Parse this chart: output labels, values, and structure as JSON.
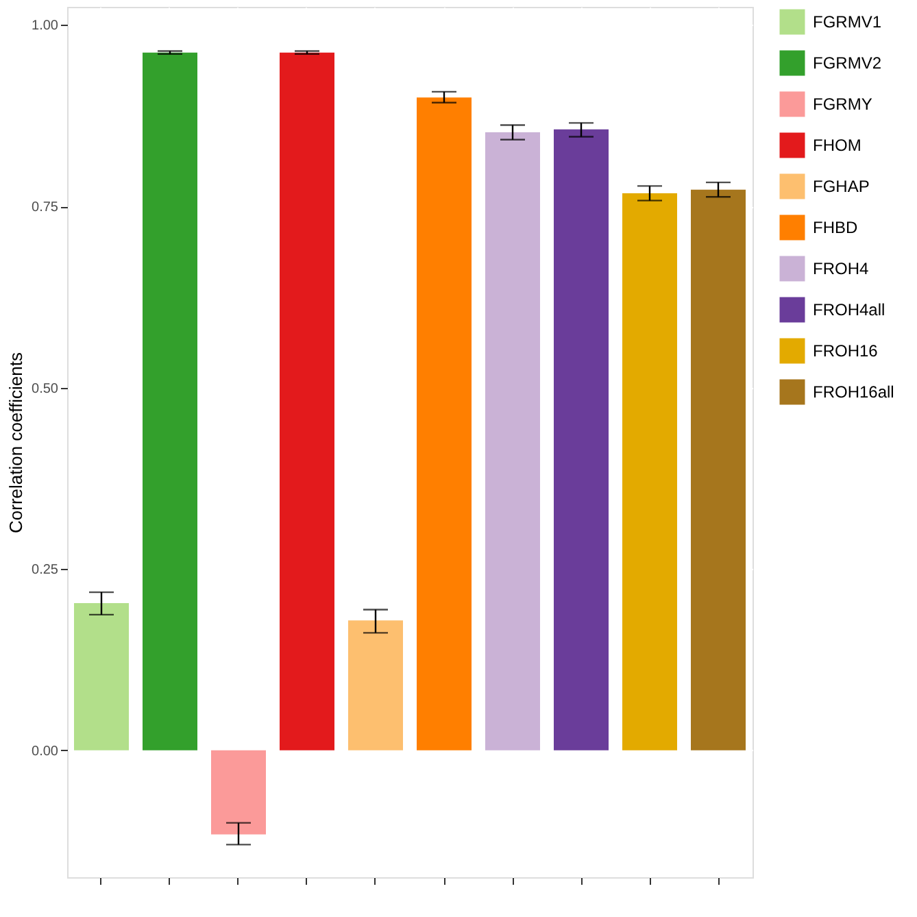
{
  "chart_data": {
    "type": "bar",
    "ylabel": "Correlation coefficients",
    "categories": [
      null,
      null,
      null,
      null,
      null,
      null,
      null,
      null,
      null,
      null
    ],
    "series": [
      {
        "name": "FGRMV1",
        "color": "#b2df8a",
        "values": [
          0.203,
          null,
          null,
          null,
          null,
          null,
          null,
          null,
          null,
          null
        ],
        "errors": [
          [
            0.187,
            0.218
          ],
          null,
          null,
          null,
          null,
          null,
          null,
          null,
          null,
          null
        ]
      },
      {
        "name": "FGRMV2",
        "color": "#33a02c",
        "values": [
          null,
          0.962,
          null,
          null,
          null,
          null,
          null,
          null,
          null,
          null
        ],
        "errors": [
          null,
          [
            0.96,
            0.964
          ],
          null,
          null,
          null,
          null,
          null,
          null,
          null,
          null
        ]
      },
      {
        "name": "FGRMY",
        "color": "#fb9a99",
        "values": [
          null,
          null,
          -0.116,
          null,
          null,
          null,
          null,
          null,
          null,
          null
        ],
        "errors": [
          null,
          null,
          [
            -0.13,
            -0.1
          ],
          null,
          null,
          null,
          null,
          null,
          null,
          null
        ]
      },
      {
        "name": "FHOM",
        "color": "#e31a1c",
        "values": [
          null,
          null,
          null,
          0.962,
          null,
          null,
          null,
          null,
          null,
          null
        ],
        "errors": [
          null,
          null,
          null,
          [
            0.96,
            0.964
          ],
          null,
          null,
          null,
          null,
          null,
          null
        ]
      },
      {
        "name": "FGHAP",
        "color": "#fdbf6f",
        "values": [
          null,
          null,
          null,
          null,
          0.179,
          null,
          null,
          null,
          null,
          null
        ],
        "errors": [
          null,
          null,
          null,
          null,
          [
            0.162,
            0.194
          ],
          null,
          null,
          null,
          null,
          null
        ]
      },
      {
        "name": "FHBD",
        "color": "#ff7f00",
        "values": [
          null,
          null,
          null,
          null,
          null,
          0.9,
          null,
          null,
          null,
          null
        ],
        "errors": [
          null,
          null,
          null,
          null,
          null,
          [
            0.893,
            0.908
          ],
          null,
          null,
          null,
          null
        ]
      },
      {
        "name": "FROH4",
        "color": "#cab2d6",
        "values": [
          null,
          null,
          null,
          null,
          null,
          null,
          0.852,
          null,
          null,
          null
        ],
        "errors": [
          null,
          null,
          null,
          null,
          null,
          null,
          [
            0.842,
            0.862
          ],
          null,
          null,
          null
        ]
      },
      {
        "name": "FROH4all",
        "color": "#6a3d9a",
        "values": [
          null,
          null,
          null,
          null,
          null,
          null,
          null,
          0.856,
          null,
          null
        ],
        "errors": [
          null,
          null,
          null,
          null,
          null,
          null,
          null,
          [
            0.846,
            0.865
          ],
          null,
          null
        ]
      },
      {
        "name": "FROH16",
        "color": "#e3aa00",
        "values": [
          null,
          null,
          null,
          null,
          null,
          null,
          null,
          null,
          0.768,
          null
        ],
        "errors": [
          null,
          null,
          null,
          null,
          null,
          null,
          null,
          null,
          [
            0.758,
            0.778
          ],
          null
        ]
      },
      {
        "name": "FROH16all",
        "color": "#a6761d",
        "values": [
          null,
          null,
          null,
          null,
          null,
          null,
          null,
          null,
          null,
          0.773
        ],
        "errors": [
          null,
          null,
          null,
          null,
          null,
          null,
          null,
          null,
          null,
          [
            0.763,
            0.783
          ]
        ]
      }
    ],
    "ylim": [
      -0.175,
      1.025
    ],
    "yticks": [
      {
        "value": 0,
        "label": "0.00"
      },
      {
        "value": 0.25,
        "label": "0.25"
      },
      {
        "value": 0.5,
        "label": "0.50"
      },
      {
        "value": 0.75,
        "label": "0.75"
      },
      {
        "value": 1,
        "label": "1.00"
      }
    ],
    "tick_labels": "y",
    "grid": true,
    "legend": "right"
  }
}
